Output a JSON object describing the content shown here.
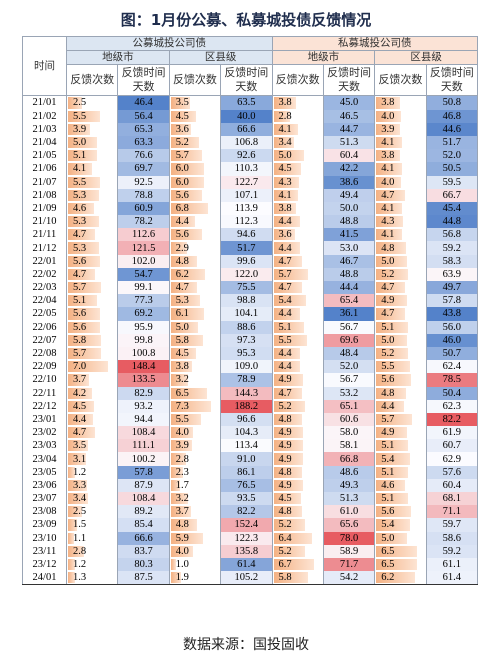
{
  "title": "图：1月份公募、私募城投债反馈情况",
  "table": {
    "corner": "时间",
    "groups": [
      "公募城投公司债",
      "私募城投公司债"
    ],
    "subgroups": [
      "地级市",
      "区县级",
      "地级市",
      "区县级"
    ],
    "columns": [
      "反馈次数",
      "反馈时间天数",
      "反馈次数",
      "反馈时间天数",
      "反馈次数",
      "反馈时间天数",
      "反馈次数",
      "反馈时间天数"
    ],
    "rows": [
      {
        "period": "21/01",
        "values": [
          2.5,
          46.4,
          3.5,
          63.5,
          3.8,
          45.0,
          3.8,
          50.8
        ]
      },
      {
        "period": "21/02",
        "values": [
          5.5,
          56.4,
          4.5,
          40.0,
          2.8,
          46.5,
          4.0,
          46.8
        ]
      },
      {
        "period": "21/03",
        "values": [
          3.9,
          65.3,
          3.6,
          66.6,
          4.1,
          44.7,
          3.9,
          44.6
        ]
      },
      {
        "period": "21/04",
        "values": [
          5.0,
          63.3,
          5.2,
          106.8,
          3.4,
          51.3,
          4.1,
          51.7
        ]
      },
      {
        "period": "21/05",
        "values": [
          5.1,
          76.6,
          5.7,
          92.6,
          5.0,
          60.4,
          3.8,
          52.0
        ]
      },
      {
        "period": "21/06",
        "values": [
          4.1,
          69.7,
          6.0,
          110.3,
          4.5,
          42.2,
          4.1,
          50.5
        ]
      },
      {
        "period": "21/07",
        "values": [
          5.5,
          92.5,
          6.0,
          122.7,
          4.3,
          38.6,
          4.0,
          59.5
        ]
      },
      {
        "period": "21/08",
        "values": [
          5.3,
          78.8,
          5.6,
          107.1,
          4.1,
          49.4,
          4.7,
          66.7
        ]
      },
      {
        "period": "21/09",
        "values": [
          4.6,
          60.9,
          6.8,
          113.9,
          3.8,
          50.0,
          4.1,
          45.4
        ]
      },
      {
        "period": "21/10",
        "values": [
          5.3,
          78.2,
          4.4,
          112.3,
          4.4,
          48.8,
          4.3,
          44.8
        ]
      },
      {
        "period": "21/11",
        "values": [
          4.7,
          112.6,
          5.6,
          94.6,
          3.6,
          41.5,
          4.1,
          56.8
        ]
      },
      {
        "period": "21/12",
        "values": [
          5.3,
          121.5,
          2.9,
          51.7,
          4.4,
          53.0,
          4.8,
          59.2
        ]
      },
      {
        "period": "22/01",
        "values": [
          5.6,
          102.0,
          4.8,
          99.6,
          4.7,
          46.7,
          5.0,
          58.3
        ]
      },
      {
        "period": "22/02",
        "values": [
          4.7,
          54.7,
          6.2,
          122.0,
          5.7,
          48.8,
          5.2,
          63.9
        ]
      },
      {
        "period": "22/03",
        "values": [
          5.7,
          99.1,
          4.7,
          75.5,
          4.7,
          44.4,
          4.7,
          49.7
        ]
      },
      {
        "period": "22/04",
        "values": [
          5.1,
          77.3,
          5.3,
          98.8,
          5.4,
          65.4,
          4.9,
          57.8
        ]
      },
      {
        "period": "22/05",
        "values": [
          5.6,
          69.2,
          6.1,
          104.1,
          4.4,
          36.1,
          4.7,
          43.8
        ]
      },
      {
        "period": "22/06",
        "values": [
          5.6,
          95.9,
          5.0,
          88.6,
          5.1,
          56.7,
          5.1,
          56.0
        ]
      },
      {
        "period": "22/07",
        "values": [
          5.8,
          99.8,
          5.8,
          97.3,
          5.5,
          69.6,
          5.0,
          46.0
        ]
      },
      {
        "period": "22/08",
        "values": [
          5.7,
          100.8,
          4.5,
          95.3,
          4.4,
          48.4,
          5.2,
          50.7
        ]
      },
      {
        "period": "22/09",
        "values": [
          7.0,
          148.4,
          3.8,
          109.0,
          4.4,
          52.0,
          5.5,
          62.4
        ]
      },
      {
        "period": "22/10",
        "values": [
          3.7,
          133.5,
          3.2,
          78.9,
          4.9,
          56.7,
          5.6,
          78.5
        ]
      },
      {
        "period": "22/11",
        "values": [
          4.2,
          82.9,
          6.5,
          144.3,
          4.7,
          53.2,
          4.8,
          50.4
        ]
      },
      {
        "period": "22/12",
        "values": [
          4.5,
          93.2,
          7.3,
          188.2,
          5.2,
          65.1,
          4.4,
          62.3
        ]
      },
      {
        "period": "23/01",
        "values": [
          4.4,
          94.4,
          5.5,
          96.6,
          4.8,
          60.6,
          5.7,
          82.2
        ]
      },
      {
        "period": "23/02",
        "values": [
          4.7,
          108.4,
          4.0,
          104.3,
          4.9,
          58.0,
          4.9,
          61.9
        ]
      },
      {
        "period": "23/03",
        "values": [
          3.5,
          111.1,
          3.9,
          113.4,
          4.9,
          58.1,
          5.1,
          60.7
        ]
      },
      {
        "period": "23/04",
        "values": [
          3.1,
          100.2,
          2.8,
          91.0,
          4.9,
          66.8,
          5.4,
          62.9
        ]
      },
      {
        "period": "23/05",
        "values": [
          1.2,
          57.8,
          2.3,
          86.1,
          4.8,
          48.6,
          5.1,
          57.6
        ]
      },
      {
        "period": "23/06",
        "values": [
          3.3,
          87.9,
          1.7,
          76.5,
          4.9,
          49.3,
          4.6,
          60.4
        ]
      },
      {
        "period": "23/07",
        "values": [
          3.4,
          108.4,
          3.2,
          93.5,
          4.5,
          51.3,
          5.1,
          68.1
        ]
      },
      {
        "period": "23/08",
        "values": [
          2.5,
          89.2,
          3.7,
          82.2,
          4.8,
          61.0,
          5.6,
          71.1
        ]
      },
      {
        "period": "23/09",
        "values": [
          1.5,
          85.4,
          4.8,
          152.4,
          5.2,
          65.6,
          5.4,
          59.7
        ]
      },
      {
        "period": "23/10",
        "values": [
          1.1,
          66.6,
          5.9,
          122.3,
          6.4,
          78.0,
          5.0,
          58.6
        ]
      },
      {
        "period": "23/11",
        "values": [
          2.8,
          83.7,
          4.0,
          135.8,
          5.2,
          58.9,
          6.5,
          59.2
        ]
      },
      {
        "period": "23/12",
        "values": [
          1.2,
          80.3,
          1.0,
          61.4,
          6.7,
          71.7,
          6.5,
          61.1
        ]
      },
      {
        "period": "24/01",
        "values": [
          1.3,
          87.5,
          1.9,
          105.2,
          5.8,
          54.2,
          6.2,
          61.4
        ]
      }
    ]
  },
  "source": "数据来源：国投固收"
}
